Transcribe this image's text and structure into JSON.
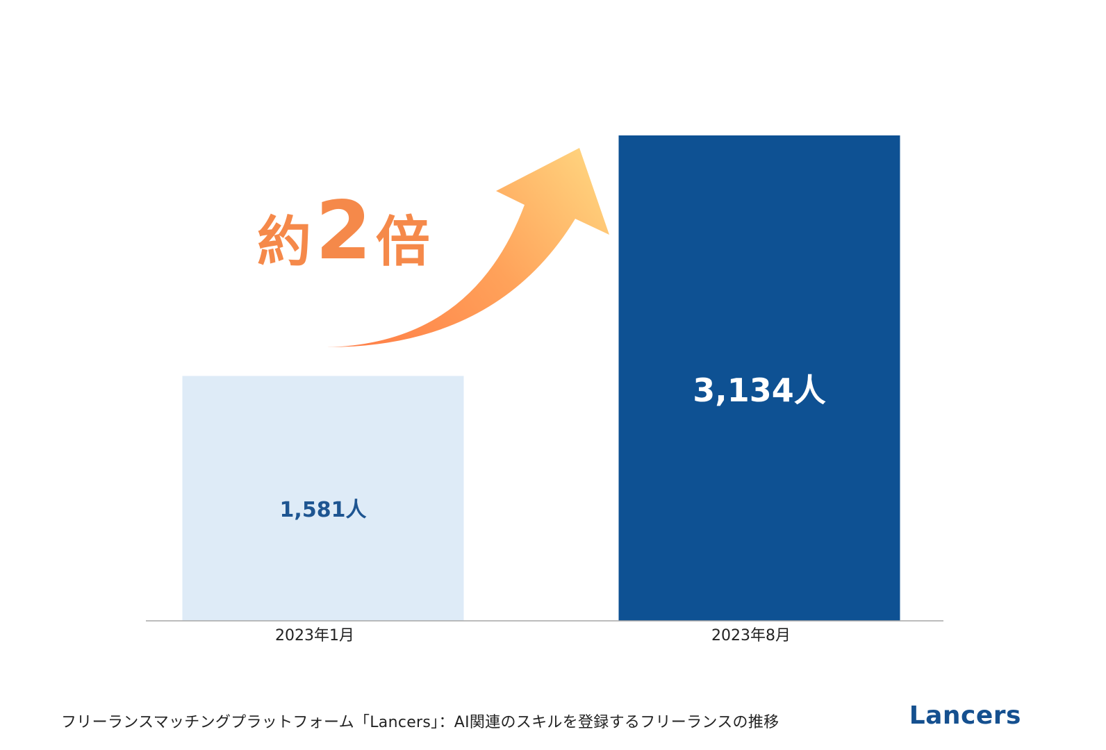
{
  "chart_data": {
    "type": "bar",
    "categories": [
      "2023年1月",
      "2023年8月"
    ],
    "values": [
      1581,
      3134
    ],
    "data_labels": [
      "1,581人",
      "3,134人"
    ],
    "ylim": [
      0,
      3134
    ],
    "grid": false,
    "colors": [
      "#deebf7",
      "#0e5193"
    ],
    "label_colors": [
      "#1e5591",
      "#ffffff"
    ]
  },
  "annotation": {
    "prefix": "約",
    "number": "2",
    "suffix": "倍",
    "color": "#f5894a",
    "arrow_icon": "curved-up-arrow-icon"
  },
  "caption": "フリーランスマッチングプラットフォーム「Lancers」：AI関連のスキルを登録するフリーランスの推移",
  "brand": "Lancers"
}
